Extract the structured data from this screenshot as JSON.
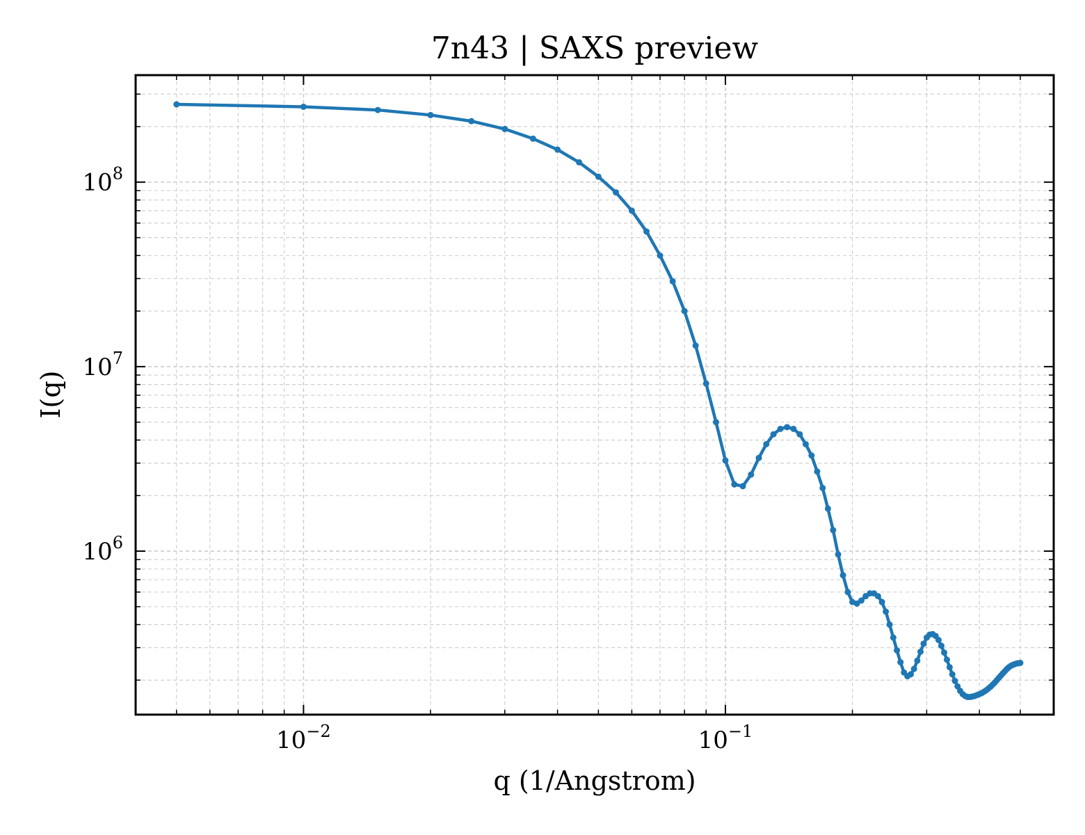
{
  "chart_data": {
    "type": "line",
    "title": "7n43 | SAXS preview",
    "xlabel": "q (1/Angstrom)",
    "ylabel": "I(q)",
    "xscale": "log",
    "yscale": "log",
    "xlim": [
      0.004,
      0.6
    ],
    "ylim": [
      130000,
      380000000
    ],
    "grid": true,
    "line_color": "#1f77b4",
    "x_ticks": [
      {
        "value": 0.01,
        "base": "10",
        "exponent": "−2"
      },
      {
        "value": 0.1,
        "base": "10",
        "exponent": "−1"
      }
    ],
    "y_ticks": [
      {
        "value": 1000000,
        "base": "10",
        "exponent": "6"
      },
      {
        "value": 10000000,
        "base": "10",
        "exponent": "7"
      },
      {
        "value": 100000000,
        "base": "10",
        "exponent": "8"
      }
    ],
    "series": [
      {
        "x": [
          0.005,
          0.01,
          0.015,
          0.02,
          0.025,
          0.03,
          0.035,
          0.04,
          0.045,
          0.05,
          0.055,
          0.06,
          0.065,
          0.07,
          0.075,
          0.08,
          0.085,
          0.09,
          0.095,
          0.1,
          0.105,
          0.11,
          0.115,
          0.12,
          0.125,
          0.13,
          0.135,
          0.14,
          0.145,
          0.15,
          0.155,
          0.16,
          0.165,
          0.17,
          0.175,
          0.18,
          0.185,
          0.19,
          0.195,
          0.2,
          0.205,
          0.21,
          0.215,
          0.22,
          0.225,
          0.23,
          0.235,
          0.24,
          0.245,
          0.25,
          0.255,
          0.26,
          0.265,
          0.27,
          0.275,
          0.28,
          0.285,
          0.29,
          0.295,
          0.3,
          0.305,
          0.31,
          0.315,
          0.32,
          0.325,
          0.33,
          0.335,
          0.34,
          0.345,
          0.35,
          0.355,
          0.36,
          0.365,
          0.37,
          0.375,
          0.38,
          0.385,
          0.39,
          0.395,
          0.4,
          0.405,
          0.41,
          0.415,
          0.42,
          0.425,
          0.43,
          0.435,
          0.44,
          0.445,
          0.45,
          0.455,
          0.46,
          0.465,
          0.47,
          0.475,
          0.48,
          0.485,
          0.49,
          0.495,
          0.5
        ],
        "y": [
          264000000,
          256000000,
          246000000,
          231000000,
          214000000,
          194000000,
          172000000,
          150000000,
          128000000,
          107000000,
          88000000,
          70000000,
          54000000,
          40000000,
          29000000,
          20000000,
          13000000,
          8100000,
          5000000,
          3100000,
          2300000,
          2250000,
          2600000,
          3200000,
          3800000,
          4300000,
          4600000,
          4700000,
          4600000,
          4300000,
          3800000,
          3300000,
          2700000,
          2200000,
          1700000,
          1300000,
          960000,
          740000,
          600000,
          530000,
          520000,
          540000,
          570000,
          590000,
          590000,
          570000,
          530000,
          470000,
          400000,
          340000,
          290000,
          250000,
          220000,
          210000,
          215000,
          230000,
          255000,
          285000,
          315000,
          340000,
          353000,
          355000,
          347000,
          330000,
          307000,
          282000,
          258000,
          235000,
          215000,
          198000,
          185000,
          175000,
          168000,
          164000,
          162000,
          162000,
          163000,
          164000,
          166000,
          168000,
          170000,
          173000,
          176000,
          180000,
          184000,
          189000,
          194000,
          200000,
          206000,
          212000,
          218000,
          224000,
          230000,
          235000,
          239000,
          242000,
          244000,
          246000,
          247000,
          248000
        ]
      }
    ]
  }
}
